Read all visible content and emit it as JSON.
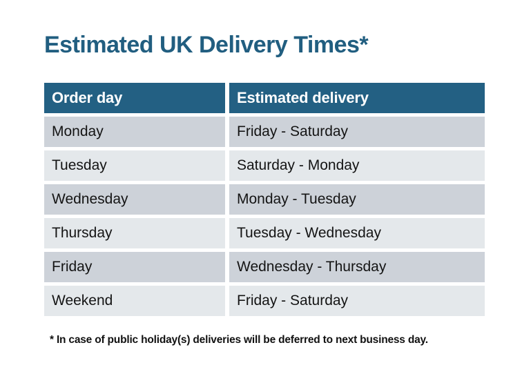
{
  "title": "Estimated UK Delivery Times*",
  "table": {
    "columns": [
      "Order day",
      "Estimated delivery"
    ],
    "rows": [
      [
        "Monday",
        "Friday - Saturday"
      ],
      [
        "Tuesday",
        "Saturday - Monday"
      ],
      [
        "Wednesday",
        "Monday - Tuesday"
      ],
      [
        "Thursday",
        "Tuesday - Wednesday"
      ],
      [
        "Friday",
        "Wednesday - Thursday"
      ],
      [
        "Weekend",
        "Friday - Saturday"
      ]
    ]
  },
  "footnote": "* In case of public holiday(s) deliveries will be deferred to next business day.",
  "colors": {
    "page_bg": "#ffffff",
    "title": "#215e80",
    "header_bg": "#236083",
    "header_text": "#ffffff",
    "row_dark": "#cdd2d9",
    "row_light": "#e4e8eb",
    "cell_text": "#141414",
    "footnote": "#111111"
  }
}
